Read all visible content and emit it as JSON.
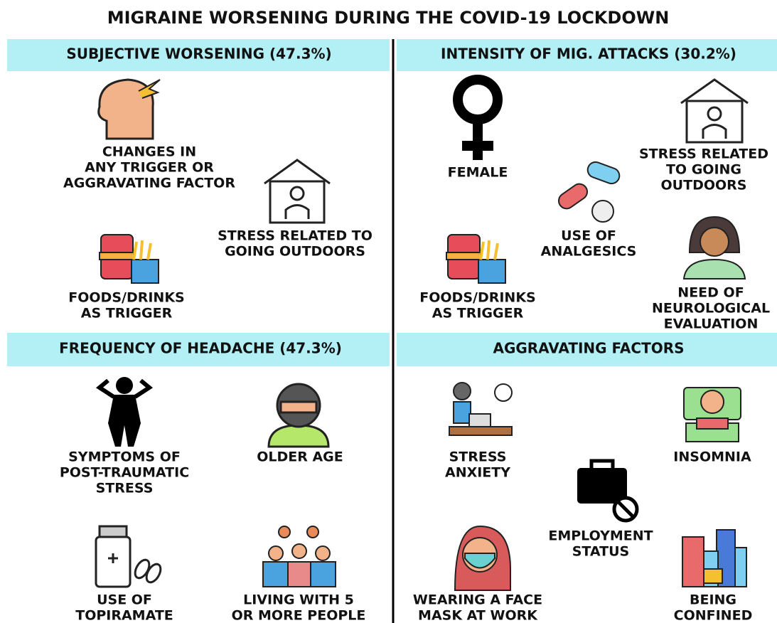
{
  "title": "MIGRAINE WORSENING DURING THE COVID-19 LOCKDOWN",
  "sections": [
    {
      "header": "SUBJECTIVE WORSENING (47.3%)",
      "items": [
        {
          "label": [
            "CHANGES IN",
            "ANY TRIGGER OR",
            "AGGRAVATING FACTOR"
          ]
        },
        {
          "label": [
            "STRESS RELATED TO",
            "GOING OUTDOORS"
          ]
        },
        {
          "label": [
            "FOODS/DRINKS",
            "AS TRIGGER"
          ]
        }
      ]
    },
    {
      "header": "INTENSITY OF MIG. ATTACKS (30.2%)",
      "items": [
        {
          "label": [
            "FEMALE"
          ]
        },
        {
          "label": [
            "STRESS RELATED",
            "TO GOING",
            "OUTDOORS"
          ]
        },
        {
          "label": [
            "USE OF",
            "ANALGESICS"
          ]
        },
        {
          "label": [
            "FOODS/DRINKS",
            "AS TRIGGER"
          ]
        },
        {
          "label": [
            "NEED OF",
            "NEUROLOGICAL",
            "EVALUATION"
          ]
        }
      ]
    },
    {
      "header": "FREQUENCY OF HEADACHE (47.3%)",
      "items": [
        {
          "label": [
            "SYMPTOMS OF",
            "POST-TRAUMATIC",
            "STRESS"
          ]
        },
        {
          "label": [
            "OLDER AGE"
          ]
        },
        {
          "label": [
            "USE OF",
            "TOPIRAMATE"
          ]
        },
        {
          "label": [
            "LIVING WITH 5",
            "OR MORE PEOPLE"
          ]
        }
      ]
    },
    {
      "header": "AGGRAVATING FACTORS",
      "items": [
        {
          "label": [
            "STRESS",
            "ANXIETY"
          ]
        },
        {
          "label": [
            "INSOMNIA"
          ]
        },
        {
          "label": [
            "EMPLOYMENT",
            "STATUS"
          ]
        },
        {
          "label": [
            "WEARING A FACE",
            "MASK AT WORK"
          ]
        },
        {
          "label": [
            "BEING",
            "CONFINED"
          ]
        }
      ]
    }
  ]
}
